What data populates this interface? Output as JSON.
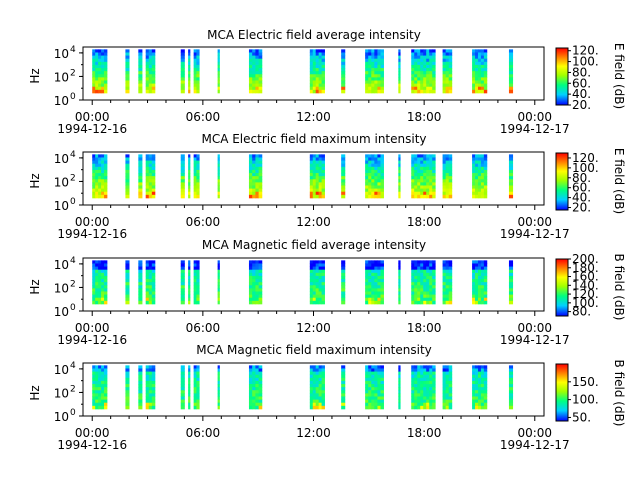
{
  "chart_data": [
    {
      "type": "heatmap",
      "title": "MCA  Electric field average intensity",
      "ylabel": "Hz",
      "colorbar_label": "E field (dB)",
      "colorbar_ticks": [
        "120.",
        "100.",
        "80.",
        "60.",
        "40.",
        "20."
      ],
      "colorbar_range": [
        20,
        125
      ],
      "y_ticks": [
        "10",
        "10",
        "10"
      ],
      "y_tick_exponents": [
        "0",
        "2",
        "4"
      ],
      "intensity_profile": "electric_avg"
    },
    {
      "type": "heatmap",
      "title": "MCA  Electric field maximum intensity",
      "ylabel": "Hz",
      "colorbar_label": "E field (dB)",
      "colorbar_ticks": [
        "120.",
        "100.",
        "80.",
        "60.",
        "40.",
        "20."
      ],
      "colorbar_range": [
        15,
        130
      ],
      "y_ticks": [
        "10",
        "10",
        "10"
      ],
      "y_tick_exponents": [
        "0",
        "2",
        "4"
      ],
      "intensity_profile": "electric_max"
    },
    {
      "type": "heatmap",
      "title": "MCA  Magnetic field average intensity",
      "ylabel": "Hz",
      "colorbar_label": "B field (dB)",
      "colorbar_ticks": [
        "200.",
        "180.",
        "160.",
        "140.",
        "120.",
        "100.",
        "80."
      ],
      "colorbar_range": [
        70,
        200
      ],
      "y_ticks": [
        "10",
        "10",
        "10"
      ],
      "y_tick_exponents": [
        "0",
        "2",
        "4"
      ],
      "intensity_profile": "magnetic_avg"
    },
    {
      "type": "heatmap",
      "title": "MCA  Magnetic field maximum intensity",
      "ylabel": "Hz",
      "colorbar_label": "B field (dB)",
      "colorbar_ticks": [
        "150.",
        "100.",
        "50."
      ],
      "colorbar_range": [
        40,
        200
      ],
      "y_ticks": [
        "10",
        "10",
        "10"
      ],
      "y_tick_exponents": [
        "0",
        "2",
        "4"
      ],
      "intensity_profile": "magnetic_max"
    }
  ],
  "x_axis": {
    "hour_range": [
      -0.5,
      24.5
    ],
    "tick_hours": [
      0,
      6,
      12,
      18,
      24
    ],
    "tick_labels": [
      "00:00",
      "06:00",
      "12:00",
      "18:00",
      "00:00"
    ],
    "start_date": "1994-12-16",
    "end_date": "1994-12-17"
  },
  "data_segments_hours": [
    [
      0.0,
      0.8
    ],
    [
      1.8,
      2.0
    ],
    [
      2.5,
      2.7
    ],
    [
      2.9,
      3.4
    ],
    [
      4.8,
      5.0
    ],
    [
      5.2,
      5.3
    ],
    [
      5.5,
      5.8
    ],
    [
      6.8,
      6.9
    ],
    [
      8.5,
      9.2
    ],
    [
      11.8,
      12.6
    ],
    [
      13.5,
      13.7
    ],
    [
      14.8,
      15.8
    ],
    [
      16.6,
      16.7
    ],
    [
      17.3,
      18.6
    ],
    [
      19.0,
      19.5
    ],
    [
      20.6,
      21.4
    ],
    [
      22.6,
      22.8
    ]
  ],
  "y_log_range": [
    0,
    4.5
  ]
}
